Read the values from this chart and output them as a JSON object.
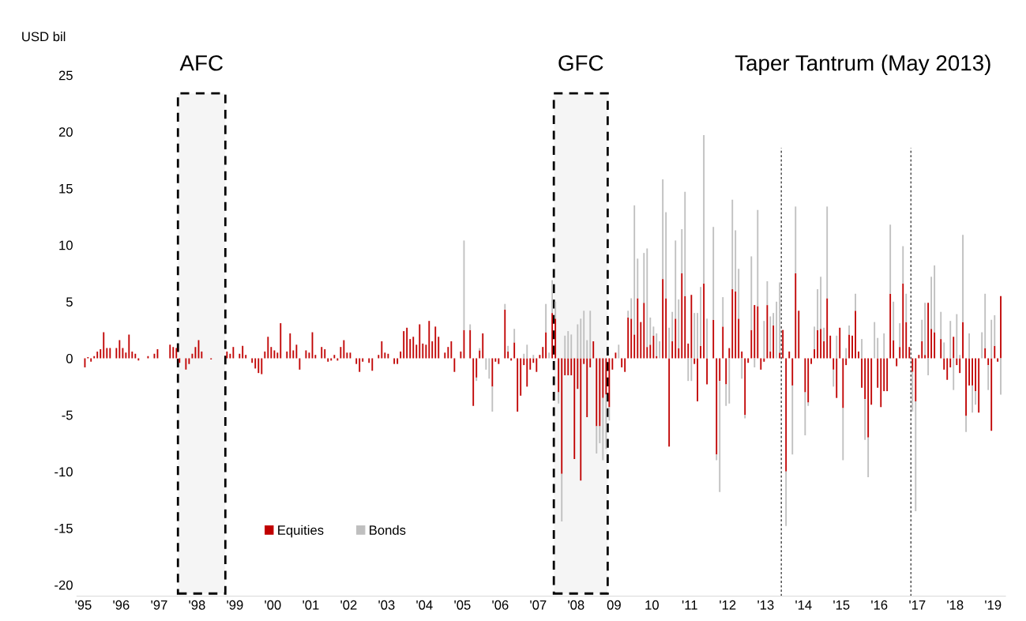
{
  "chart_data": {
    "type": "bar",
    "stacked": true,
    "ylabel": "USD bil",
    "x": [
      "1995-01",
      "1995-02",
      "1995-03",
      "1995-04",
      "1995-05",
      "1995-06",
      "1995-07",
      "1995-08",
      "1995-09",
      "1995-10",
      "1995-11",
      "1995-12",
      "1996-01",
      "1996-02",
      "1996-03",
      "1996-04",
      "1996-05",
      "1996-06",
      "1996-07",
      "1996-08",
      "1996-09",
      "1996-10",
      "1996-11",
      "1996-12",
      "1997-01",
      "1997-02",
      "1997-03",
      "1997-04",
      "1997-05",
      "1997-06",
      "1997-07",
      "1997-08",
      "1997-09",
      "1997-10",
      "1997-11",
      "1997-12",
      "1998-01",
      "1998-02",
      "1998-03",
      "1998-04",
      "1998-05",
      "1998-06",
      "1998-07",
      "1998-08",
      "1998-09",
      "1998-10",
      "1998-11",
      "1998-12",
      "1999-01",
      "1999-02",
      "1999-03",
      "1999-04",
      "1999-05",
      "1999-06",
      "1999-07",
      "1999-08",
      "1999-09",
      "1999-10",
      "1999-11",
      "1999-12",
      "2000-01",
      "2000-02",
      "2000-03",
      "2000-04",
      "2000-05",
      "2000-06",
      "2000-07",
      "2000-08",
      "2000-09",
      "2000-10",
      "2000-11",
      "2000-12",
      "2001-01",
      "2001-02",
      "2001-03",
      "2001-04",
      "2001-05",
      "2001-06",
      "2001-07",
      "2001-08",
      "2001-09",
      "2001-10",
      "2001-11",
      "2001-12",
      "2002-01",
      "2002-02",
      "2002-03",
      "2002-04",
      "2002-05",
      "2002-06",
      "2002-07",
      "2002-08",
      "2002-09",
      "2002-10",
      "2002-11",
      "2002-12",
      "2003-01",
      "2003-02",
      "2003-03",
      "2003-04",
      "2003-05",
      "2003-06",
      "2003-07",
      "2003-08",
      "2003-09",
      "2003-10",
      "2003-11",
      "2003-12",
      "2004-01",
      "2004-02",
      "2004-03",
      "2004-04",
      "2004-05",
      "2004-06",
      "2004-07",
      "2004-08",
      "2004-09",
      "2004-10",
      "2004-11",
      "2004-12",
      "2005-01",
      "2005-02",
      "2005-03",
      "2005-04",
      "2005-05",
      "2005-06",
      "2005-07",
      "2005-08",
      "2005-09",
      "2005-10",
      "2005-11",
      "2005-12",
      "2006-01",
      "2006-02",
      "2006-03",
      "2006-04",
      "2006-05",
      "2006-06",
      "2006-07",
      "2006-08",
      "2006-09",
      "2006-10",
      "2006-11",
      "2006-12",
      "2007-01",
      "2007-02",
      "2007-03",
      "2007-04",
      "2007-05",
      "2007-06",
      "2007-07",
      "2007-08",
      "2007-09",
      "2007-10",
      "2007-11",
      "2007-12",
      "2008-01",
      "2008-02",
      "2008-03",
      "2008-04",
      "2008-05",
      "2008-06",
      "2008-07",
      "2008-08",
      "2008-09",
      "2008-10",
      "2008-11",
      "2008-12",
      "2009-01",
      "2009-02",
      "2009-03",
      "2009-04",
      "2009-05",
      "2009-06",
      "2009-07",
      "2009-08",
      "2009-09",
      "2009-10",
      "2009-11",
      "2009-12",
      "2010-01",
      "2010-02",
      "2010-03",
      "2010-04",
      "2010-05",
      "2010-06",
      "2010-07",
      "2010-08",
      "2010-09",
      "2010-10",
      "2010-11",
      "2010-12",
      "2011-01",
      "2011-02",
      "2011-03",
      "2011-04",
      "2011-05",
      "2011-06",
      "2011-07",
      "2011-08",
      "2011-09",
      "2011-10",
      "2011-11",
      "2011-12",
      "2012-01",
      "2012-02",
      "2012-03",
      "2012-04",
      "2012-05",
      "2012-06",
      "2012-07",
      "2012-08",
      "2012-09",
      "2012-10",
      "2012-11",
      "2012-12",
      "2013-01",
      "2013-02",
      "2013-03",
      "2013-04",
      "2013-05",
      "2013-06",
      "2013-07",
      "2013-08",
      "2013-09",
      "2013-10",
      "2013-11",
      "2013-12",
      "2014-01",
      "2014-02",
      "2014-03",
      "2014-04",
      "2014-05",
      "2014-06",
      "2014-07",
      "2014-08",
      "2014-09",
      "2014-10",
      "2014-11",
      "2014-12",
      "2015-01",
      "2015-02",
      "2015-03",
      "2015-04",
      "2015-05",
      "2015-06",
      "2015-07",
      "2015-08",
      "2015-09",
      "2015-10",
      "2015-11",
      "2015-12",
      "2016-01",
      "2016-02",
      "2016-03",
      "2016-04",
      "2016-05",
      "2016-06",
      "2016-07",
      "2016-08",
      "2016-09",
      "2016-10",
      "2016-11",
      "2016-12",
      "2017-01",
      "2017-02",
      "2017-03",
      "2017-04",
      "2017-05",
      "2017-06",
      "2017-07",
      "2017-08",
      "2017-09",
      "2017-10",
      "2017-11",
      "2017-12",
      "2018-01",
      "2018-02",
      "2018-03",
      "2018-04",
      "2018-05",
      "2018-06",
      "2018-07",
      "2018-08",
      "2018-09",
      "2018-10",
      "2018-11",
      "2018-12",
      "2019-01",
      "2019-02",
      "2019-03"
    ],
    "series": [
      {
        "name": "Equities",
        "color": "#c00000",
        "values": [
          -0.8,
          0.1,
          -0.3,
          0.2,
          0.6,
          0.8,
          2.3,
          0.9,
          0.9,
          0,
          0.9,
          1.6,
          0.9,
          0.5,
          2.1,
          0.6,
          0.4,
          -0.2,
          0,
          0,
          0.2,
          0,
          0.4,
          0.8,
          0,
          0,
          0,
          1.2,
          1.0,
          0.9,
          -0.4,
          0,
          -1.0,
          -0.5,
          0.4,
          1.0,
          1.6,
          0.6,
          0,
          0,
          -0.1,
          0,
          0,
          0,
          0,
          0.6,
          0.4,
          1.0,
          0,
          0.4,
          1.1,
          0.3,
          0,
          -0.4,
          -0.9,
          -1.3,
          -1.4,
          0.6,
          1.9,
          1.0,
          0.7,
          0.5,
          3.1,
          0,
          0.6,
          2.2,
          0.7,
          1.2,
          -1.0,
          0,
          0.7,
          0.5,
          2.3,
          0.3,
          0,
          1.0,
          0.8,
          -0.3,
          -0.2,
          0.3,
          -0.2,
          1.0,
          1.6,
          0.5,
          0.5,
          0,
          -0.5,
          -1.2,
          -0.3,
          0,
          -0.4,
          -1.1,
          0,
          0.3,
          1.5,
          0.5,
          0.4,
          0,
          -0.5,
          -0.5,
          0.6,
          2.4,
          2.7,
          1.7,
          1.9,
          1.2,
          3.0,
          1.3,
          1.2,
          3.3,
          1.5,
          2.8,
          1.9,
          0,
          0.5,
          1.0,
          1.5,
          -1.2,
          0,
          0.6,
          2.5,
          0,
          2.5,
          -4.2,
          -1.7,
          0.7,
          2.2,
          0,
          0,
          -2.5,
          -0.3,
          -0.5,
          0,
          4.3,
          0.6,
          -0.2,
          1.4,
          -4.7,
          -3.3,
          -0.6,
          -2.5,
          -1.0,
          -0.4,
          -1.2,
          0.3,
          1.0,
          2.3,
          0,
          4.0,
          3.5,
          -3.0,
          -10.2,
          -1.5,
          -1.5,
          -1.5,
          -8.9,
          -2.7,
          -10.8,
          -0.5,
          -5.2,
          -0.8,
          1.5,
          -6.0,
          -6.0,
          -3.5,
          -3.2,
          -4.3,
          -1.0,
          0.5,
          0,
          -0.8,
          -1.2,
          3.6,
          3.5,
          2.1,
          5.3,
          3.2,
          4.9,
          1.0,
          1.2,
          2.0,
          0.2,
          0,
          7.0,
          5.3,
          -7.8,
          1.5,
          3.5,
          0.9,
          7.5,
          5.5,
          1.3,
          5.6,
          -0.5,
          -3.8,
          1.1,
          6.6,
          -2.3,
          0,
          3.4,
          -8.5,
          -2.0,
          2.8,
          -2.3,
          0.9,
          6.1,
          5.9,
          3.5,
          0.6,
          -5.0,
          -0.4,
          2.5,
          4.7,
          4.6,
          -1.0,
          -0.3,
          4.7,
          0.6,
          2.9,
          0,
          0.5,
          2.5,
          -10.0,
          0.6,
          -2.4,
          7.5,
          4.2,
          0,
          -3.0,
          -3.9,
          -0.5,
          0.8,
          2.5,
          2.6,
          1.5,
          5.3,
          2.0,
          -1.0,
          -3.5,
          2.7,
          -4.4,
          -0.6,
          2.1,
          2.0,
          4.2,
          0.6,
          -2.6,
          -3.6,
          -7.0,
          -4.1,
          0,
          -2.6,
          -4.3,
          -2.9,
          -2.9,
          5.7,
          1.6,
          -0.7,
          1.0,
          6.6,
          3.2,
          1.0,
          -1.2,
          -3.8,
          0.3,
          1.5,
          0.3,
          4.9,
          2.6,
          2.3,
          0,
          1.7,
          -1.0,
          -1.9,
          -0.8,
          1.9,
          -0.6,
          -1.3,
          3.2,
          -5.1,
          -2.4,
          -2.4,
          -2.9,
          -4.8,
          0,
          0.9,
          -0.6,
          -6.4,
          1.1,
          -0.3,
          5.5
        ]
      },
      {
        "name": "Bonds",
        "color": "#bfbfbf",
        "values": [
          null,
          null,
          null,
          null,
          null,
          null,
          null,
          null,
          null,
          null,
          null,
          null,
          null,
          null,
          null,
          null,
          null,
          null,
          null,
          null,
          null,
          null,
          null,
          null,
          null,
          null,
          null,
          null,
          null,
          null,
          null,
          null,
          null,
          null,
          null,
          null,
          null,
          null,
          null,
          null,
          null,
          null,
          null,
          null,
          null,
          null,
          null,
          null,
          null,
          null,
          null,
          null,
          null,
          null,
          null,
          null,
          null,
          null,
          null,
          null,
          null,
          null,
          null,
          null,
          null,
          null,
          null,
          null,
          null,
          null,
          null,
          null,
          null,
          null,
          null,
          null,
          null,
          null,
          null,
          null,
          null,
          null,
          null,
          null,
          null,
          null,
          null,
          null,
          null,
          null,
          null,
          null,
          null,
          null,
          null,
          null,
          null,
          null,
          null,
          null,
          null,
          null,
          null,
          null,
          null,
          null,
          null,
          null,
          null,
          null,
          null,
          null,
          null,
          null,
          null,
          null,
          null,
          null,
          null,
          null,
          7.9,
          0,
          0.5,
          0,
          -0.3,
          0.2,
          0,
          -1.0,
          -1.8,
          -2.2,
          0,
          0,
          0,
          0.5,
          0.5,
          0,
          1.2,
          0,
          0,
          0.4,
          1.2,
          0,
          0.3,
          0,
          0,
          0,
          2.5,
          0.5,
          2.9,
          1.5,
          -1.0,
          -4.2,
          2.0,
          2.4,
          2.1,
          0,
          3.0,
          3.5,
          4.2,
          1.6,
          4.2,
          0,
          -2.4,
          -1.5,
          -5.5,
          -4.8,
          -1.2,
          0,
          0,
          1.2,
          0,
          0,
          0.6,
          1.8,
          11.4,
          3.5,
          0,
          4.4,
          8.7,
          2.4,
          0.8,
          2.0,
          1.5,
          8.8,
          7.6,
          2.7,
          2.6,
          6.9,
          4.3,
          3.9,
          9.2,
          -2.0,
          -2.0,
          4.0,
          4.0,
          5.2,
          13.1,
          3.5,
          0,
          8.2,
          -0.5,
          -9.8,
          2.6,
          -1.9,
          -4.0,
          7.9,
          5.4,
          4.4,
          -1.8,
          -0.3,
          0,
          6.5,
          -0.8,
          8.5,
          0,
          3.3,
          2.1,
          3.1,
          1.1,
          5.0,
          6.2,
          0,
          -4.8,
          0,
          -6.1,
          5.9,
          0,
          0,
          -3.8,
          -0.3,
          0,
          2.0,
          3.6,
          4.6,
          1.2,
          8.1,
          0,
          -1.5,
          2.0,
          0,
          -4.6,
          0.9,
          0.8,
          0,
          1.5,
          0,
          1.7,
          -3.6,
          -3.5,
          0,
          3.2,
          1.8,
          0,
          2.2,
          0,
          6.1,
          3.4,
          0,
          2.1,
          3.3,
          2.5,
          0,
          -3.5,
          -9.7,
          0,
          1.9,
          4.6,
          -1.5,
          4.6,
          5.9,
          0,
          2.4,
          1.4,
          0,
          3.3,
          -2.8,
          3.9,
          0.3,
          7.7,
          -1.4,
          2.2,
          -2.4,
          -1.2,
          0,
          2.3,
          4.8,
          -2.2,
          3.4,
          2.7,
          0,
          -3.2
        ]
      }
    ],
    "xlim": [
      "1994-11",
      "2019-05"
    ],
    "xticks": [
      {
        "value": "1995-01",
        "label": "'95"
      },
      {
        "value": "1996-01",
        "label": "'96"
      },
      {
        "value": "1997-01",
        "label": "'97"
      },
      {
        "value": "1998-01",
        "label": "'98"
      },
      {
        "value": "1999-01",
        "label": "'99"
      },
      {
        "value": "2000-01",
        "label": "'00"
      },
      {
        "value": "2001-01",
        "label": "'01"
      },
      {
        "value": "2002-01",
        "label": "'02"
      },
      {
        "value": "2003-01",
        "label": "'03"
      },
      {
        "value": "2004-01",
        "label": "'04"
      },
      {
        "value": "2005-01",
        "label": "'05"
      },
      {
        "value": "2006-01",
        "label": "'06"
      },
      {
        "value": "2007-01",
        "label": "'07"
      },
      {
        "value": "2008-01",
        "label": "'08"
      },
      {
        "value": "2009-01",
        "label": "09"
      },
      {
        "value": "2010-01",
        "label": "10"
      },
      {
        "value": "2011-01",
        "label": "'11"
      },
      {
        "value": "2012-01",
        "label": "'12"
      },
      {
        "value": "2013-01",
        "label": "'13"
      },
      {
        "value": "2014-01",
        "label": "'14"
      },
      {
        "value": "2015-01",
        "label": "'15"
      },
      {
        "value": "2016-01",
        "label": "'16"
      },
      {
        "value": "2017-01",
        "label": "'17"
      },
      {
        "value": "2018-01",
        "label": "'18"
      },
      {
        "value": "2019-01",
        "label": "'19"
      }
    ],
    "ylim": [
      -21,
      25
    ],
    "yticks": [
      -20,
      -15,
      -10,
      -5,
      0,
      5,
      10,
      15,
      20,
      25
    ],
    "bands": [
      {
        "axis": "x",
        "from": "1997-07",
        "to": "1998-10",
        "label": "AFC",
        "color": "#000000"
      },
      {
        "axis": "x",
        "from": "2007-06",
        "to": "2008-11",
        "label": "GFC",
        "color": "#000000"
      }
    ],
    "ref_lines": [
      {
        "axis": "x",
        "value": "2013-06",
        "color": "#404040",
        "line_style": "dotted"
      },
      {
        "axis": "x",
        "value": "2016-11",
        "color": "#404040",
        "line_style": "dotted"
      }
    ],
    "annotations": [
      "Taper Tantrum (May 2013)"
    ],
    "legend": "bottom left",
    "grid": false
  }
}
